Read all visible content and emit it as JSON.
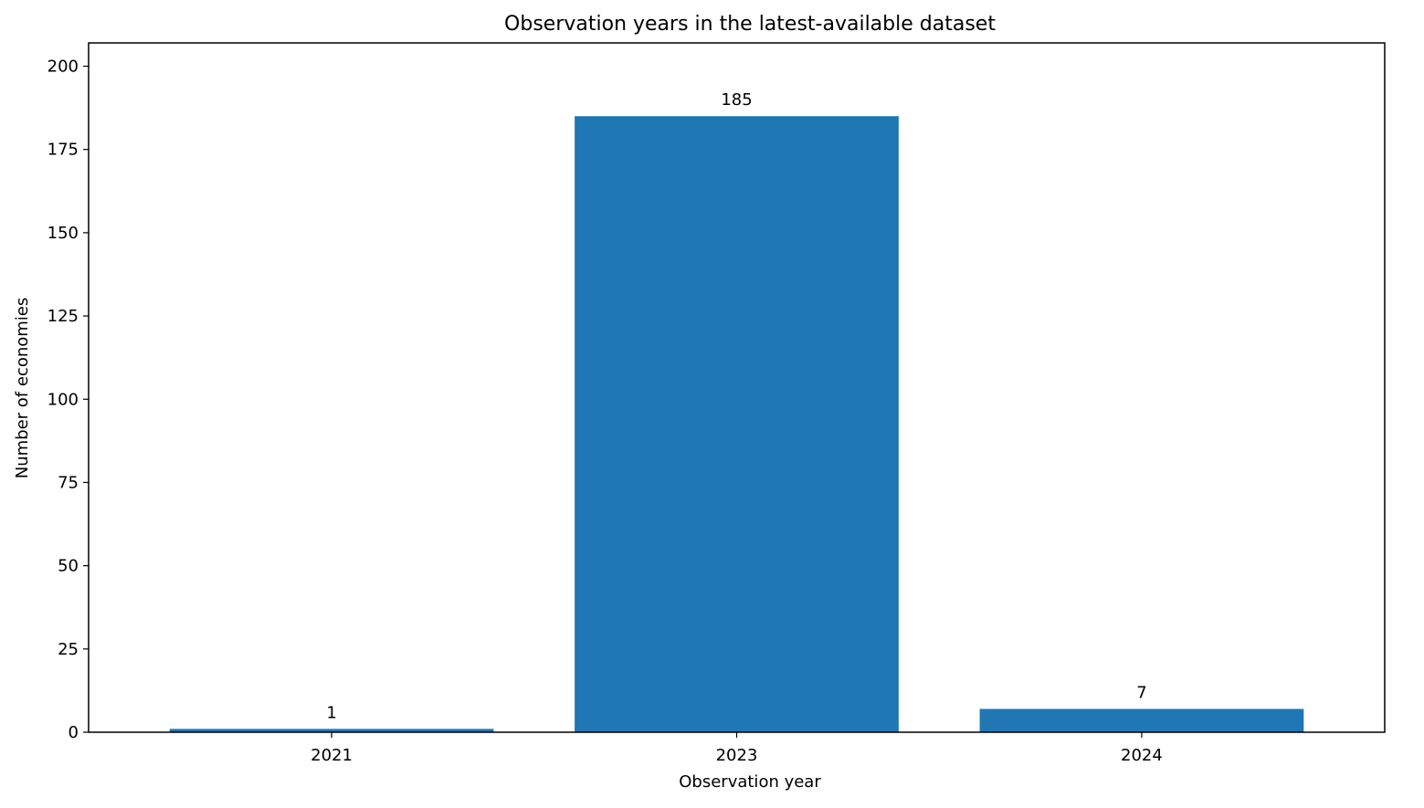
{
  "chart_data": {
    "type": "bar",
    "title": "Observation years in the latest-available dataset",
    "xlabel": "Observation year",
    "ylabel": "Number of economies",
    "categories": [
      "2021",
      "2023",
      "2024"
    ],
    "values": [
      1,
      185,
      7
    ],
    "value_labels": [
      "1",
      "185",
      "7"
    ],
    "ylim": [
      0,
      207
    ],
    "yticks": [
      0,
      25,
      50,
      75,
      100,
      125,
      150,
      175,
      200
    ],
    "grid": false,
    "legend": "none",
    "bar_color": "#1f77b4"
  }
}
